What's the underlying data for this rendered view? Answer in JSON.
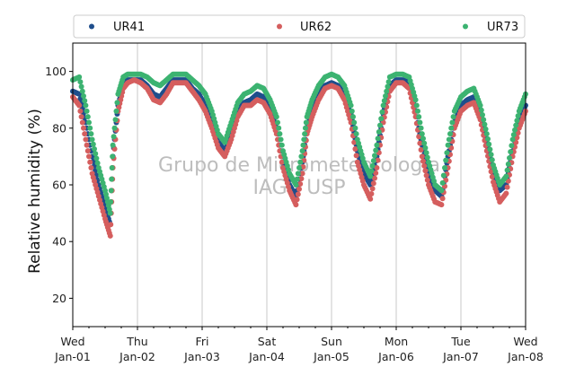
{
  "chart_data": {
    "type": "scatter",
    "title": "",
    "xlabel": "",
    "ylabel": "Relative humidity (%)",
    "ylim": [
      10,
      110
    ],
    "yticks": [
      20,
      40,
      60,
      80,
      100
    ],
    "xlim": [
      0,
      7
    ],
    "xticks": [
      {
        "x": 0,
        "day": "Wed",
        "date": "Jan-01"
      },
      {
        "x": 1,
        "day": "Thu",
        "date": "Jan-02"
      },
      {
        "x": 2,
        "day": "Fri",
        "date": "Jan-03"
      },
      {
        "x": 3,
        "day": "Sat",
        "date": "Jan-04"
      },
      {
        "x": 4,
        "day": "Sun",
        "date": "Jan-05"
      },
      {
        "x": 5,
        "day": "Mon",
        "date": "Jan-06"
      },
      {
        "x": 6,
        "day": "Tue",
        "date": "Jan-07"
      },
      {
        "x": 7,
        "day": "Wed",
        "date": "Jan-08"
      }
    ],
    "grid": "vertical",
    "legend_position": "top",
    "watermark": [
      "Grupo de Micrometeorologia",
      "IAG / USP"
    ],
    "x_units": "days since Jan-01",
    "series": [
      {
        "name": "UR41",
        "color": "#1f4e8c",
        "x": [
          0,
          0.1,
          0.2,
          0.3,
          0.4,
          0.5,
          0.58,
          0.62,
          0.7,
          0.78,
          0.85,
          0.95,
          1.05,
          1.15,
          1.25,
          1.35,
          1.45,
          1.55,
          1.65,
          1.75,
          1.85,
          1.95,
          2.05,
          2.15,
          2.25,
          2.35,
          2.45,
          2.55,
          2.65,
          2.75,
          2.85,
          2.95,
          3.05,
          3.15,
          3.25,
          3.35,
          3.45,
          3.55,
          3.62,
          3.7,
          3.8,
          3.9,
          4.0,
          4.1,
          4.2,
          4.3,
          4.4,
          4.5,
          4.6,
          4.7,
          4.8,
          4.9,
          5.0,
          5.1,
          5.2,
          5.3,
          5.4,
          5.5,
          5.6,
          5.7,
          5.8,
          5.9,
          6.0,
          6.1,
          6.2,
          6.3,
          6.4,
          6.5,
          6.6,
          6.7,
          6.8,
          6.9,
          7.0
        ],
        "y": [
          93,
          92,
          82,
          70,
          60,
          52,
          46,
          70,
          88,
          95,
          97,
          97,
          97,
          95,
          92,
          91,
          94,
          97,
          97,
          97,
          94,
          92,
          88,
          82,
          75,
          72,
          78,
          86,
          89,
          90,
          92,
          91,
          87,
          80,
          68,
          60,
          56,
          68,
          80,
          86,
          92,
          95,
          96,
          95,
          92,
          85,
          72,
          64,
          60,
          70,
          85,
          95,
          97,
          97,
          96,
          86,
          74,
          64,
          58,
          56,
          70,
          82,
          88,
          90,
          91,
          85,
          75,
          64,
          58,
          60,
          72,
          82,
          88
        ]
      },
      {
        "name": "UR62",
        "color": "#d55e5e",
        "x": [
          0,
          0.1,
          0.2,
          0.3,
          0.4,
          0.5,
          0.58,
          0.62,
          0.7,
          0.78,
          0.85,
          0.95,
          1.05,
          1.15,
          1.25,
          1.35,
          1.45,
          1.55,
          1.65,
          1.75,
          1.85,
          1.95,
          2.05,
          2.15,
          2.25,
          2.35,
          2.45,
          2.55,
          2.65,
          2.75,
          2.85,
          2.95,
          3.05,
          3.15,
          3.25,
          3.35,
          3.45,
          3.55,
          3.62,
          3.7,
          3.8,
          3.9,
          4.0,
          4.1,
          4.2,
          4.3,
          4.4,
          4.5,
          4.6,
          4.7,
          4.8,
          4.9,
          5.0,
          5.1,
          5.2,
          5.3,
          5.4,
          5.5,
          5.6,
          5.7,
          5.8,
          5.9,
          6.0,
          6.1,
          6.2,
          6.3,
          6.4,
          6.5,
          6.6,
          6.7,
          6.8,
          6.9,
          7.0
        ],
        "y": [
          91,
          88,
          76,
          64,
          56,
          48,
          42,
          66,
          86,
          94,
          96,
          97,
          96,
          94,
          90,
          89,
          92,
          96,
          96,
          96,
          93,
          90,
          86,
          80,
          73,
          70,
          76,
          84,
          88,
          88,
          90,
          89,
          85,
          78,
          66,
          58,
          53,
          64,
          78,
          84,
          90,
          94,
          95,
          94,
          90,
          82,
          68,
          60,
          55,
          66,
          82,
          93,
          96,
          96,
          94,
          84,
          70,
          60,
          54,
          53,
          66,
          80,
          86,
          88,
          89,
          83,
          72,
          61,
          54,
          57,
          70,
          80,
          86
        ]
      },
      {
        "name": "UR73",
        "color": "#3cb371",
        "x": [
          0,
          0.1,
          0.2,
          0.3,
          0.4,
          0.5,
          0.58,
          0.62,
          0.7,
          0.78,
          0.85,
          0.95,
          1.05,
          1.15,
          1.25,
          1.35,
          1.45,
          1.55,
          1.65,
          1.75,
          1.85,
          1.95,
          2.05,
          2.15,
          2.25,
          2.35,
          2.45,
          2.55,
          2.65,
          2.75,
          2.85,
          2.95,
          3.05,
          3.15,
          3.25,
          3.35,
          3.45,
          3.55,
          3.62,
          3.7,
          3.8,
          3.9,
          4.0,
          4.1,
          4.2,
          4.3,
          4.4,
          4.5,
          4.6,
          4.7,
          4.8,
          4.9,
          5.0,
          5.1,
          5.2,
          5.3,
          5.4,
          5.5,
          5.6,
          5.7,
          5.8,
          5.9,
          6.0,
          6.1,
          6.2,
          6.3,
          6.4,
          6.5,
          6.6,
          6.7,
          6.8,
          6.9,
          7.0
        ],
        "y": [
          97,
          98,
          88,
          76,
          66,
          58,
          50,
          74,
          92,
          98,
          99,
          99,
          99,
          98,
          96,
          95,
          97,
          99,
          99,
          99,
          97,
          95,
          92,
          86,
          78,
          75,
          82,
          89,
          92,
          93,
          95,
          94,
          90,
          84,
          72,
          64,
          60,
          72,
          84,
          90,
          95,
          98,
          99,
          98,
          95,
          88,
          76,
          68,
          63,
          74,
          88,
          98,
          99,
          99,
          98,
          90,
          78,
          68,
          60,
          58,
          74,
          86,
          91,
          93,
          94,
          88,
          78,
          67,
          60,
          63,
          76,
          86,
          92
        ]
      }
    ]
  }
}
